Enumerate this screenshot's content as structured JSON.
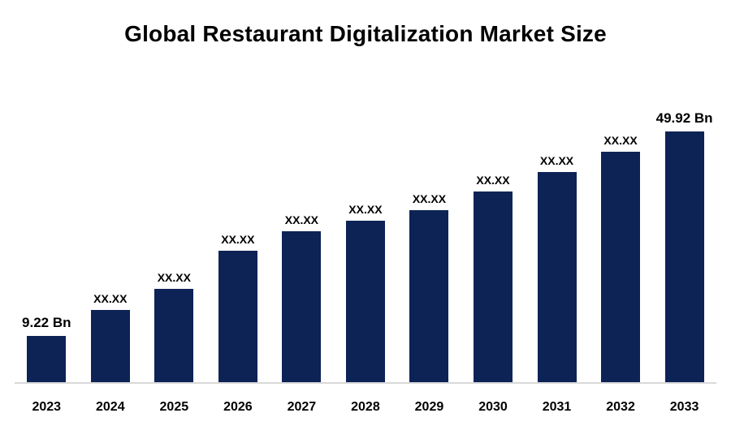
{
  "chart_data": {
    "type": "bar",
    "title": "Global Restaurant Digitalization Market Size",
    "xlabel": "",
    "ylabel": "",
    "unit": "Bn",
    "grid": false,
    "legend": "none",
    "bar_color": "#0d2356",
    "categories": [
      "2023",
      "2024",
      "2025",
      "2026",
      "2027",
      "2028",
      "2029",
      "2030",
      "2031",
      "2032",
      "2033"
    ],
    "values": [
      9.22,
      14.3,
      18.6,
      26.1,
      30.0,
      32.1,
      34.2,
      38.0,
      41.9,
      45.8,
      49.92
    ],
    "value_labels": [
      "9.22 Bn",
      "XX.XX",
      "XX.XX",
      "XX.XX",
      "XX.XX",
      "XX.XX",
      "XX.XX",
      "XX.XX",
      "XX.XX",
      "XX.XX",
      "49.92 Bn"
    ],
    "ylim": [
      0,
      52
    ]
  }
}
